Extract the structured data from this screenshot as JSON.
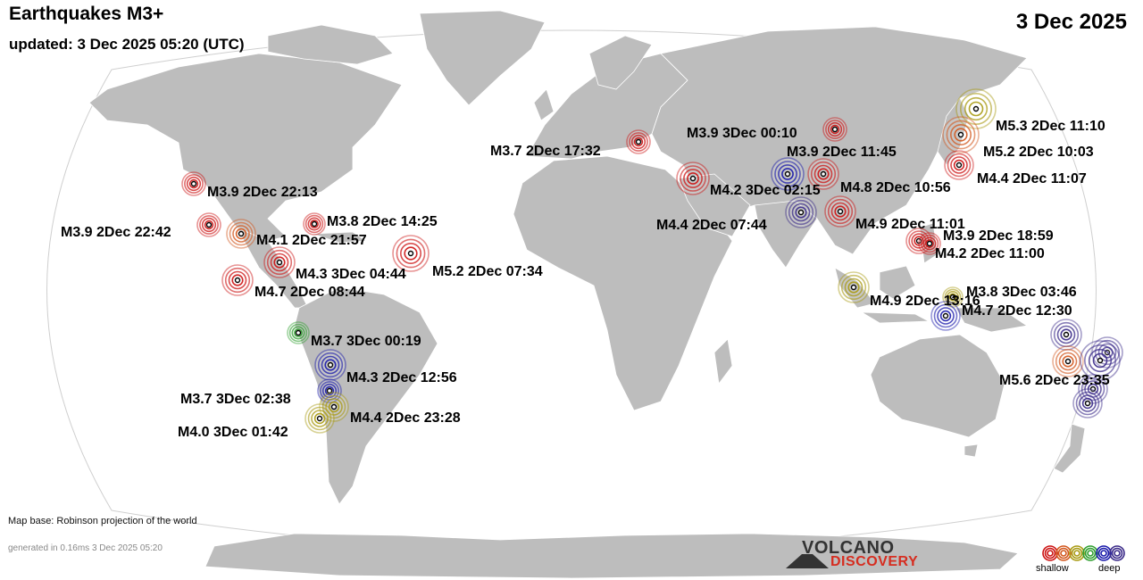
{
  "header": {
    "title": "Earthquakes M3+",
    "updated": "updated:  3 Dec 2025 05:20 (UTC)",
    "date": "3 Dec 2025"
  },
  "footer": {
    "map_base": "Map base: Robinson projection of the world",
    "generated": "generated in 0.16ms  3 Dec 2025 05:20"
  },
  "logo": {
    "line1": "VOLCANO",
    "line2": "DISCOVERY"
  },
  "legend": {
    "shallow_label": "shallow",
    "deep_label": "deep",
    "colors": [
      "#cc1111",
      "#d2561c",
      "#a89a12",
      "#2e9e2e",
      "#1818aa",
      "#3a2a88"
    ]
  },
  "colors": {
    "ocean": "#ffffff",
    "land": "#bdbdbd",
    "shallow": "#cc1111",
    "intermediate": "#d2561c",
    "mid": "#a89a12",
    "green": "#2e9e2e",
    "deep_blue": "#1818aa",
    "deep_purple": "#3a2a88"
  },
  "quakes": [
    {
      "label": "M3.9  2Dec 22:13",
      "color": "#cc1111"
    },
    {
      "label": "M3.9  2Dec 22:42",
      "color": "#cc1111"
    },
    {
      "label": "M4.1  2Dec 21:57",
      "color": "#d2561c"
    },
    {
      "label": "M3.8  2Dec 14:25",
      "color": "#cc1111"
    },
    {
      "label": "M4.3  3Dec 04:44",
      "color": "#cc1111"
    },
    {
      "label": "M4.7  2Dec 08:44",
      "color": "#cc1111"
    },
    {
      "label": "M5.2  2Dec 07:34",
      "color": "#cc1111"
    },
    {
      "label": "M3.7  3Dec 00:19",
      "color": "#2e9e2e"
    },
    {
      "label": "M4.3  2Dec 12:56",
      "color": "#1818aa"
    },
    {
      "label": "M3.7  3Dec 02:38",
      "color": "#1818aa"
    },
    {
      "label": "M4.4  2Dec 23:28",
      "color": "#a89a12"
    },
    {
      "label": "M4.0  3Dec 01:42",
      "color": "#a89a12"
    },
    {
      "label": "M3.7  2Dec 17:32",
      "color": "#cc1111"
    },
    {
      "label": "M3.9  3Dec 00:10",
      "color": "#cc1111"
    },
    {
      "label": "M3.9  2Dec 11:45",
      "color": "#1818aa"
    },
    {
      "label": "M4.2  3Dec 02:15",
      "color": "#cc1111"
    },
    {
      "label": "M4.8  2Dec 10:56",
      "color": "#cc1111"
    },
    {
      "label": "M4.4  2Dec 07:44",
      "color": "#3a2a88"
    },
    {
      "label": "M4.9  2Dec 11:01",
      "color": "#cc1111"
    },
    {
      "label": "M3.9  2Dec 18:59",
      "color": "#cc1111"
    },
    {
      "label": "M4.2  2Dec 11:00",
      "color": "#cc1111"
    },
    {
      "label": "M5.3  2Dec 11:10",
      "color": "#a89a12"
    },
    {
      "label": "M5.2  2Dec 10:03",
      "color": "#d2561c"
    },
    {
      "label": "M4.4  2Dec 11:07",
      "color": "#cc1111"
    },
    {
      "label": "M4.9  2Dec 13:16",
      "color": "#a89a12"
    },
    {
      "label": "M3.8  3Dec 03:46",
      "color": "#a89a12"
    },
    {
      "label": "M4.7  2Dec 12:30",
      "color": "#1818aa"
    },
    {
      "label": "M5.6  2Dec 23:35",
      "color": "#3a2a88"
    }
  ]
}
